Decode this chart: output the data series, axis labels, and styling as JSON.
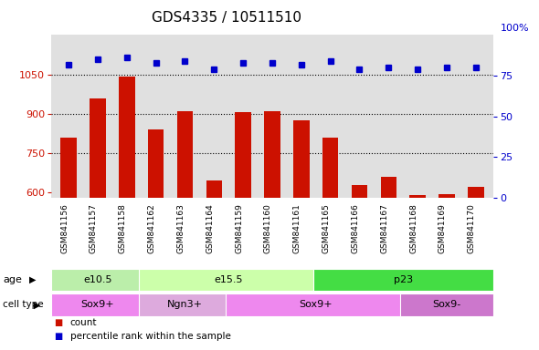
{
  "title": "GDS4335 / 10511510",
  "samples": [
    "GSM841156",
    "GSM841157",
    "GSM841158",
    "GSM841162",
    "GSM841163",
    "GSM841164",
    "GSM841159",
    "GSM841160",
    "GSM841161",
    "GSM841165",
    "GSM841166",
    "GSM841167",
    "GSM841168",
    "GSM841169",
    "GSM841170"
  ],
  "counts": [
    810,
    960,
    1040,
    840,
    910,
    645,
    905,
    910,
    875,
    810,
    630,
    660,
    590,
    595,
    620
  ],
  "percentiles": [
    82,
    85,
    86,
    83,
    84,
    79,
    83,
    83,
    82,
    84,
    79,
    80,
    79,
    80,
    80
  ],
  "ylim_left": [
    580,
    1200
  ],
  "ylim_right": [
    0,
    100
  ],
  "yticks_left": [
    600,
    750,
    900,
    1050
  ],
  "yticks_right": [
    0,
    25,
    50,
    75
  ],
  "right_top_label": "100%",
  "bar_color": "#cc1100",
  "dot_color": "#0000cc",
  "age_groups": [
    {
      "label": "e10.5",
      "start": 0,
      "end": 3,
      "color": "#bbeeaa"
    },
    {
      "label": "e15.5",
      "start": 3,
      "end": 9,
      "color": "#ccffaa"
    },
    {
      "label": "p23",
      "start": 9,
      "end": 15,
      "color": "#44dd44"
    }
  ],
  "cell_groups": [
    {
      "label": "Sox9+",
      "start": 0,
      "end": 3,
      "color": "#ee88ee"
    },
    {
      "label": "Ngn3+",
      "start": 3,
      "end": 6,
      "color": "#ddaadd"
    },
    {
      "label": "Sox9+",
      "start": 6,
      "end": 12,
      "color": "#ee88ee"
    },
    {
      "label": "Sox9-",
      "start": 12,
      "end": 15,
      "color": "#cc77cc"
    }
  ],
  "bar_color_legend": "#cc1100",
  "dot_color_legend": "#0000cc",
  "axis_color_left": "#cc1100",
  "axis_color_right": "#0000cc",
  "plot_bg": "#e0e0e0",
  "label_bg": "#c0c0c0",
  "n_samples": 15
}
